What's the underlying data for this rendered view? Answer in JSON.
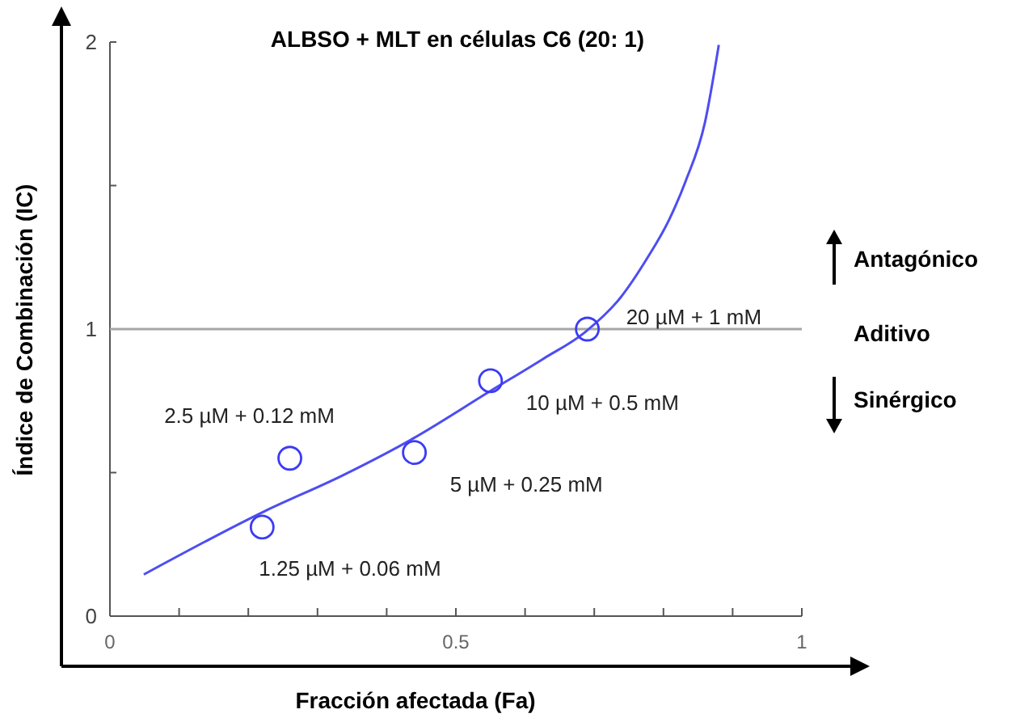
{
  "chart_data": {
    "type": "scatter",
    "title": "ALBSO + MLT en  células C6 (20: 1)",
    "xlabel": "Fracción afectada (Fa)",
    "ylabel": "Índice de Combinación  (IC)",
    "xlim": [
      0,
      1
    ],
    "ylim": [
      0,
      2
    ],
    "xticks": [
      0,
      {
        "value": 0.1,
        "label": null
      },
      {
        "value": 0.2,
        "label": null
      },
      {
        "value": 0.3,
        "label": null
      },
      {
        "value": 0.4,
        "label": null
      },
      0.5,
      {
        "value": 0.6,
        "label": null
      },
      {
        "value": 0.7,
        "label": null
      },
      {
        "value": 0.8,
        "label": null
      },
      {
        "value": 0.9,
        "label": null
      },
      1
    ],
    "yticks": [
      0,
      {
        "value": 0.5,
        "label": null
      },
      1,
      {
        "value": 1.5,
        "label": null
      },
      2
    ],
    "grid": false,
    "ref_lines": [
      {
        "axis": "y",
        "value": 1,
        "color": "#a6a6a6"
      }
    ],
    "series": [
      {
        "color": "#3b3bf5",
        "marker": "circle",
        "x": [
          0.22,
          0.26,
          0.44,
          0.55,
          0.69
        ],
        "values": [
          0.31,
          0.55,
          0.57,
          0.82,
          1.0
        ]
      },
      {
        "type": "line",
        "color": "#4d4df2",
        "marker": "none",
        "line_style": "solid",
        "x": [
          0.049,
          0.224,
          0.336,
          0.439,
          0.549,
          0.626,
          0.687,
          0.738,
          0.776,
          0.808,
          0.832,
          0.86,
          0.88
        ],
        "values": [
          0.145,
          0.366,
          0.49,
          0.62,
          0.783,
          0.896,
          0.99,
          1.11,
          1.245,
          1.38,
          1.515,
          1.72,
          1.99
        ]
      }
    ],
    "annotations": [
      {
        "text": "1.25 µM + 0.06 mM",
        "x": 0.22,
        "y": 0.31
      },
      {
        "text": "2.5 µM + 0.12 mM",
        "x": 0.26,
        "y": 0.55
      },
      {
        "text": "5 µM + 0.25 mM",
        "x": 0.44,
        "y": 0.57
      },
      {
        "text": "10 µM + 0.5 mM",
        "x": 0.55,
        "y": 0.82
      },
      {
        "text": "20 µM + 1 mM",
        "x": 0.69,
        "y": 1.0
      },
      "Antagónico",
      "Aditivo",
      "Sinérgico"
    ]
  }
}
